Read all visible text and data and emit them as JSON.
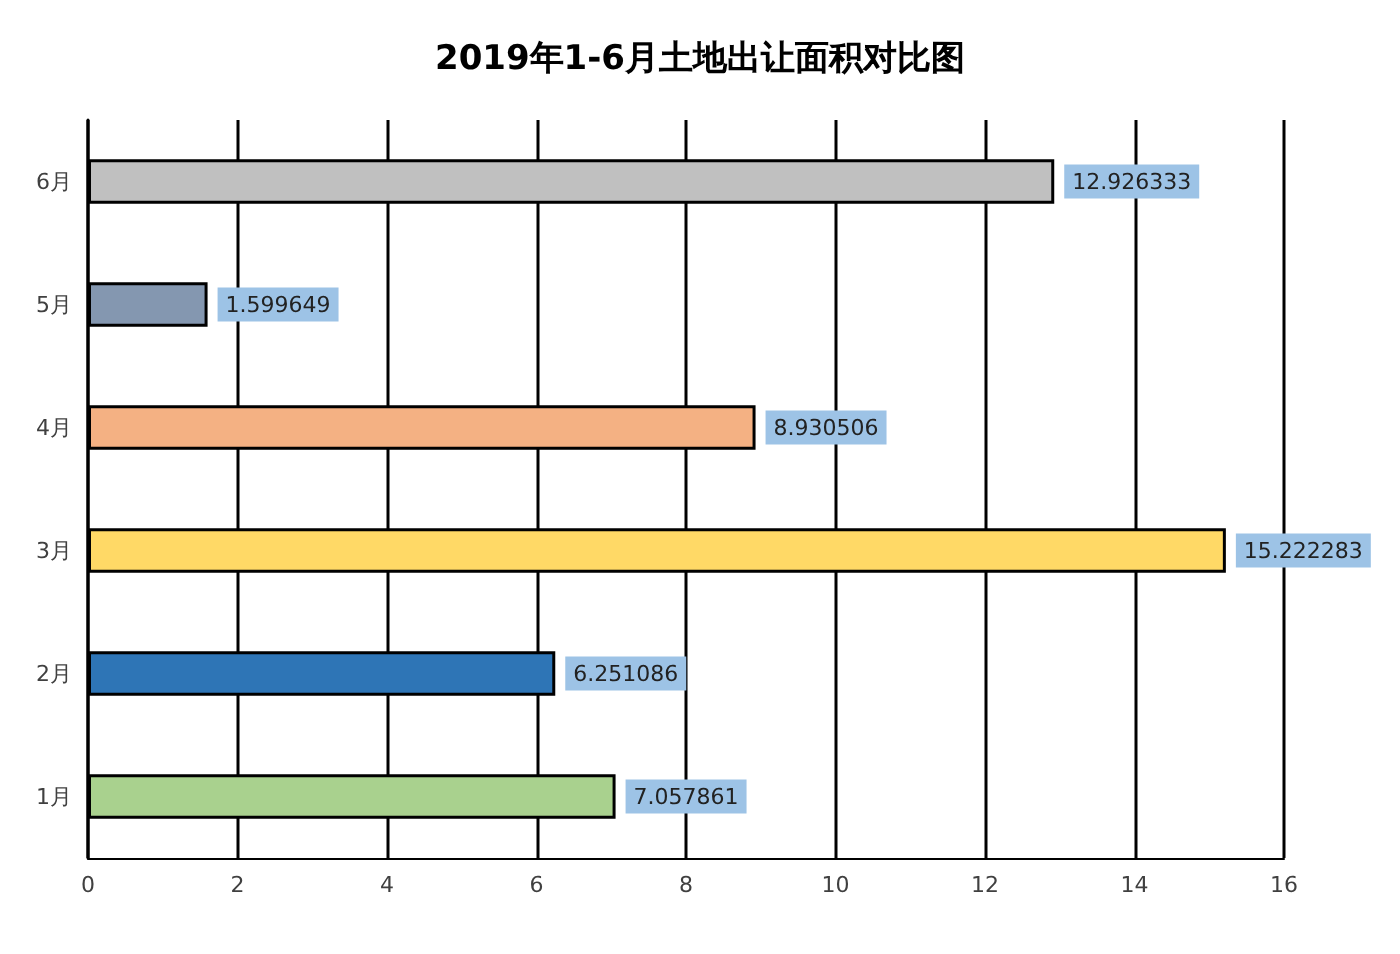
{
  "chart_data": {
    "type": "bar",
    "title": "2019年1-6月土地出让面积对比图",
    "orientation": "horizontal",
    "categories": [
      "6月",
      "5月",
      "4月",
      "3月",
      "2月",
      "1月"
    ],
    "values": [
      12.926333,
      1.599649,
      8.930506,
      15.222283,
      6.251086,
      7.057861
    ],
    "colors": [
      "#c0c0c0",
      "#8497b0",
      "#f4b183",
      "#ffd966",
      "#2e75b6",
      "#a9d18e"
    ],
    "xlim": [
      0,
      16
    ],
    "xticks": [
      0,
      2,
      4,
      6,
      8,
      10,
      12,
      14,
      16
    ],
    "grid": "x",
    "data_labels": true
  }
}
